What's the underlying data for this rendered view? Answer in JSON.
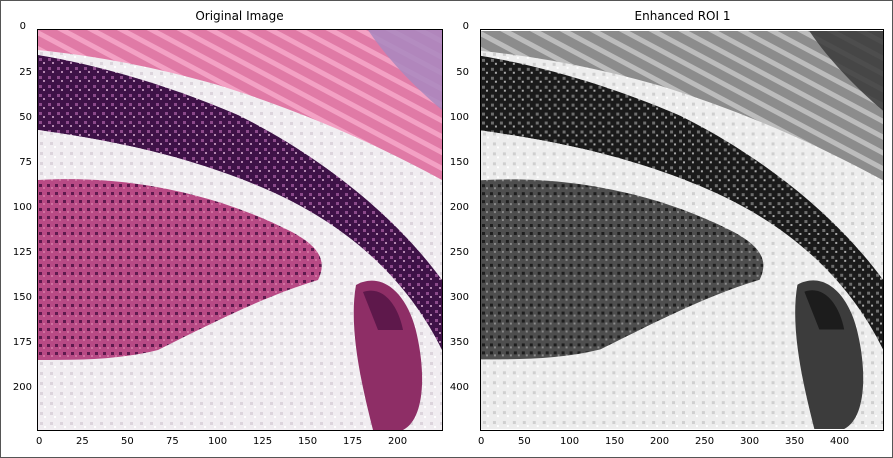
{
  "panels": [
    {
      "title": "Original Image",
      "x_ticks": [
        "0",
        "25",
        "50",
        "75",
        "100",
        "125",
        "150",
        "175",
        "200"
      ],
      "y_ticks": [
        "0",
        "25",
        "50",
        "75",
        "100",
        "125",
        "150",
        "175",
        "200"
      ],
      "xlim": [
        0,
        224
      ],
      "ylim": [
        0,
        224
      ]
    },
    {
      "title": "Enhanced ROI 1",
      "x_ticks": [
        "0",
        "50",
        "100",
        "150",
        "200",
        "250",
        "300",
        "350",
        "400"
      ],
      "y_ticks": [
        "0",
        "50",
        "100",
        "150",
        "200",
        "250",
        "300",
        "350",
        "400"
      ],
      "xlim": [
        0,
        448
      ],
      "ylim": [
        0,
        448
      ]
    }
  ],
  "colors": {
    "tissue_pink": "#c9668f",
    "tissue_dark_purple": "#4a1850",
    "background_white": "#f2eef2",
    "muscle_pink": "#e07aa8"
  }
}
